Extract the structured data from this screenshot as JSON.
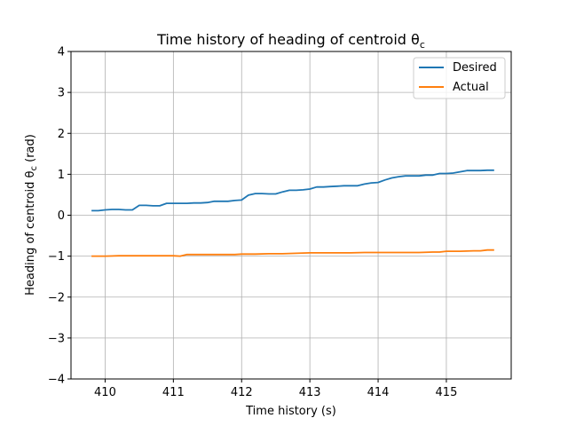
{
  "chart_data": {
    "type": "line",
    "title": "Time history of heading of centroid θ",
    "title_sub": "c",
    "xlabel": "Time history (s)",
    "ylabel": "Heading of centroid θ",
    "ylabel_sub": "c",
    "ylabel_unit": " (rad)",
    "xlim": [
      409.5,
      415.95
    ],
    "ylim": [
      -4,
      4
    ],
    "xticks": [
      410,
      411,
      412,
      413,
      414,
      415
    ],
    "yticks": [
      -4,
      -3,
      -2,
      -1,
      0,
      1,
      2,
      3,
      4
    ],
    "ytick_labels": [
      "−4",
      "−3",
      "−2",
      "−1",
      "0",
      "1",
      "2",
      "3",
      "4"
    ],
    "grid": true,
    "legend_position": "top-right",
    "series": [
      {
        "name": "Desired",
        "color": "#1f77b4",
        "x": [
          409.8,
          409.9,
          410.0,
          410.1,
          410.2,
          410.3,
          410.4,
          410.5,
          410.6,
          410.7,
          410.8,
          410.9,
          411.0,
          411.1,
          411.2,
          411.3,
          411.4,
          411.5,
          411.6,
          411.7,
          411.8,
          411.9,
          412.0,
          412.1,
          412.2,
          412.3,
          412.4,
          412.5,
          412.6,
          412.7,
          412.8,
          412.9,
          413.0,
          413.1,
          413.2,
          413.3,
          413.4,
          413.5,
          413.6,
          413.7,
          413.8,
          413.9,
          414.0,
          414.1,
          414.2,
          414.3,
          414.4,
          414.5,
          414.6,
          414.7,
          414.8,
          414.9,
          415.0,
          415.1,
          415.2,
          415.3,
          415.4,
          415.5,
          415.6,
          415.7
        ],
        "values": [
          0.11,
          0.11,
          0.13,
          0.14,
          0.14,
          0.13,
          0.13,
          0.24,
          0.24,
          0.23,
          0.23,
          0.29,
          0.29,
          0.29,
          0.29,
          0.3,
          0.3,
          0.31,
          0.34,
          0.34,
          0.34,
          0.36,
          0.37,
          0.49,
          0.53,
          0.53,
          0.52,
          0.52,
          0.57,
          0.61,
          0.61,
          0.62,
          0.64,
          0.69,
          0.69,
          0.7,
          0.71,
          0.72,
          0.72,
          0.72,
          0.76,
          0.79,
          0.8,
          0.86,
          0.91,
          0.94,
          0.96,
          0.96,
          0.96,
          0.98,
          0.98,
          1.02,
          1.02,
          1.03,
          1.06,
          1.09,
          1.09,
          1.09,
          1.1,
          1.1
        ]
      },
      {
        "name": "Actual",
        "color": "#ff7f0e",
        "x": [
          409.8,
          410.0,
          410.2,
          410.4,
          410.6,
          410.8,
          411.0,
          411.1,
          411.2,
          411.4,
          411.6,
          411.8,
          411.9,
          412.0,
          412.2,
          412.4,
          412.6,
          412.8,
          413.0,
          413.2,
          413.4,
          413.6,
          413.8,
          414.0,
          414.2,
          414.4,
          414.6,
          414.8,
          414.9,
          415.0,
          415.2,
          415.4,
          415.5,
          415.6,
          415.7
        ],
        "values": [
          -1.0,
          -1.0,
          -0.99,
          -0.99,
          -0.99,
          -0.99,
          -0.99,
          -1.0,
          -0.96,
          -0.96,
          -0.96,
          -0.96,
          -0.96,
          -0.95,
          -0.95,
          -0.94,
          -0.94,
          -0.93,
          -0.92,
          -0.92,
          -0.92,
          -0.92,
          -0.91,
          -0.91,
          -0.91,
          -0.91,
          -0.91,
          -0.9,
          -0.9,
          -0.88,
          -0.88,
          -0.87,
          -0.87,
          -0.85,
          -0.85
        ]
      }
    ]
  }
}
